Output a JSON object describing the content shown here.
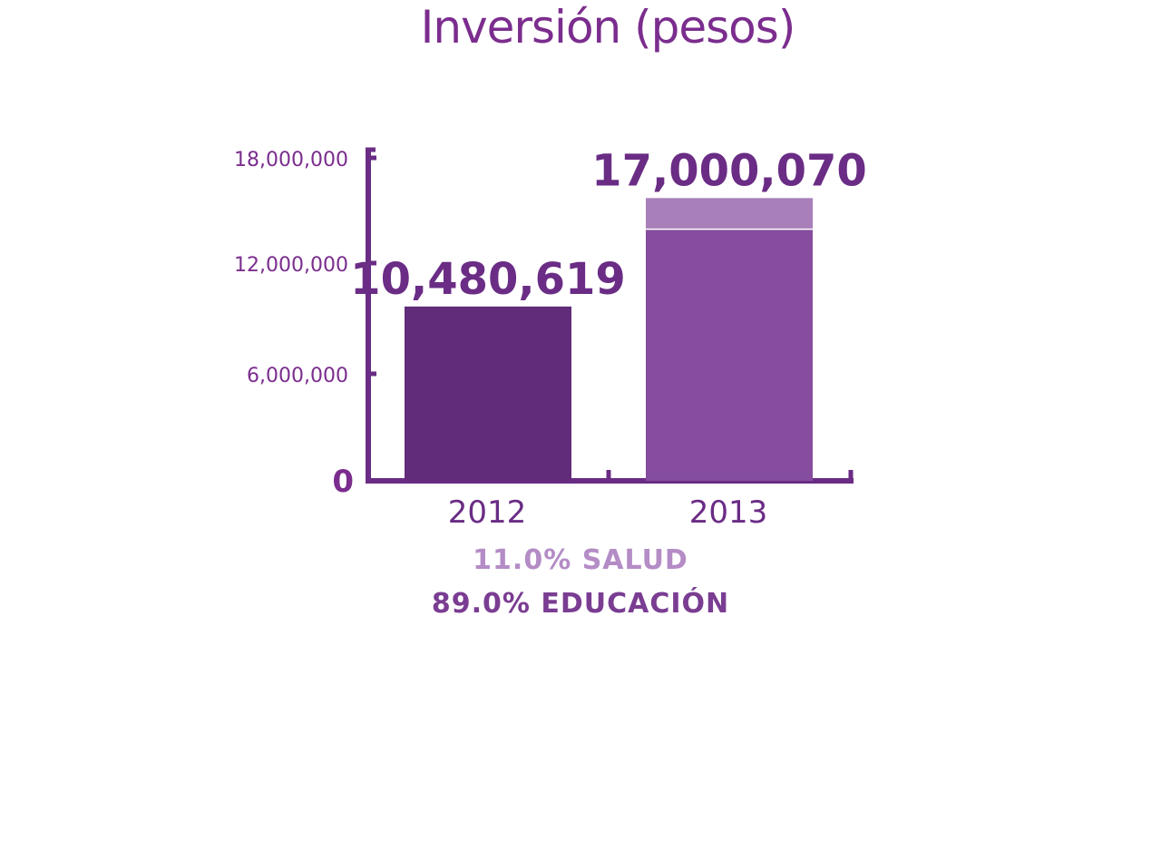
{
  "chart_data": {
    "type": "bar",
    "title": "Inversión (pesos)",
    "categories": [
      "2012",
      "2013"
    ],
    "series": [
      {
        "name": "89.0% EDUCACIÓN",
        "values": [
          10480619,
          15130062
        ],
        "color": "#612c79",
        "color_2013": "#864d9e"
      },
      {
        "name": "11.0% SALUD",
        "values": [
          0,
          1870008
        ],
        "color": "#a87fb9"
      }
    ],
    "totals": [
      "10,480,619",
      "17,000,070"
    ],
    "yticks": [
      "0",
      "6,000,000",
      "12,000,000",
      "18,000,000"
    ],
    "ytick_values": [
      0,
      6000000,
      12000000,
      18000000
    ],
    "ylim": [
      0,
      18000000
    ],
    "xlabel": "",
    "ylabel": "",
    "legend_position": "bottom",
    "axis_color": "#6a2c85"
  },
  "legend": {
    "salud": "11.0% SALUD",
    "educacion": "89.0% EDUCACIÓN"
  }
}
